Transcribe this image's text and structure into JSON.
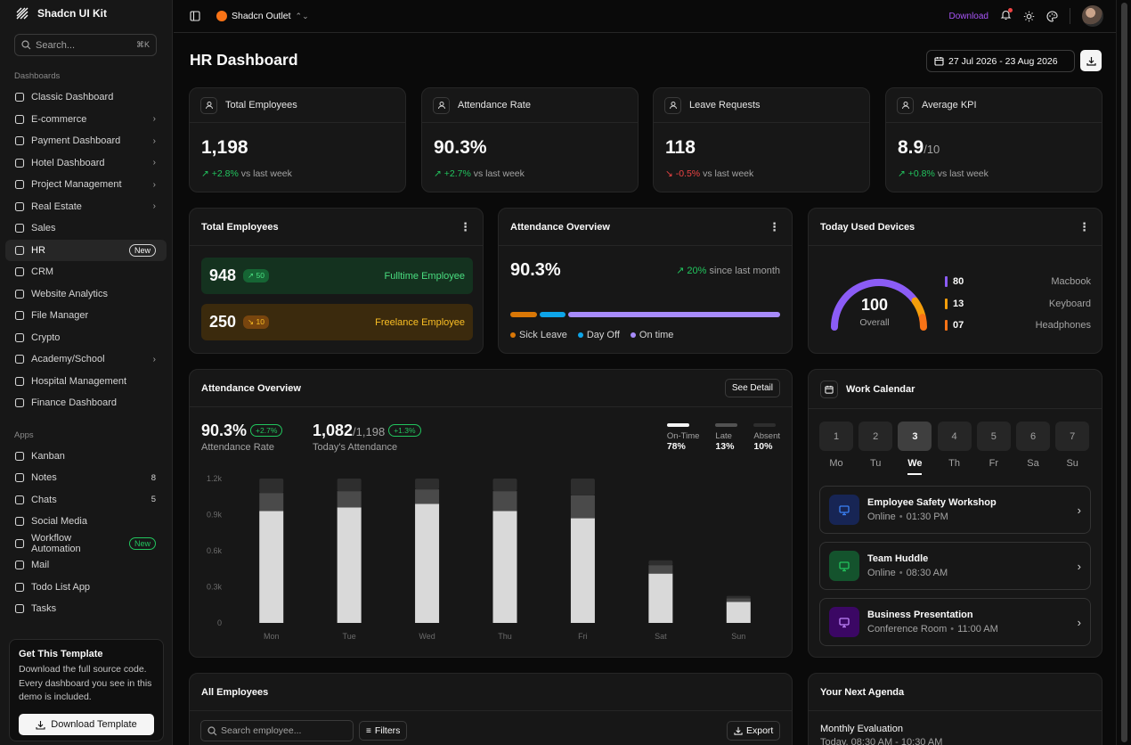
{
  "app": {
    "brand": "Shadcn UI Kit",
    "workspace": "Shadcn Outlet"
  },
  "sidebar": {
    "search_placeholder": "Search...",
    "search_shortcut": "⌘K",
    "dashboards_label": "Dashboards",
    "dashboards": [
      {
        "label": "Classic Dashboard",
        "icon": "clock-icon"
      },
      {
        "label": "E-commerce",
        "icon": "shopping-bag-icon",
        "chevron": true
      },
      {
        "label": "Payment Dashboard",
        "icon": "credit-card-icon",
        "chevron": true
      },
      {
        "label": "Hotel Dashboard",
        "icon": "building-icon",
        "chevron": true
      },
      {
        "label": "Project Management",
        "icon": "folder-icon",
        "chevron": true
      },
      {
        "label": "Real Estate",
        "icon": "building-icon",
        "chevron": true
      },
      {
        "label": "Sales",
        "icon": "dollar-icon"
      },
      {
        "label": "HR",
        "icon": "users-icon",
        "badge": "New",
        "active": true
      },
      {
        "label": "CRM",
        "icon": "chart-icon"
      },
      {
        "label": "Website Analytics",
        "icon": "gauge-icon"
      },
      {
        "label": "File Manager",
        "icon": "folder-icon"
      },
      {
        "label": "Crypto",
        "icon": "wallet-icon"
      },
      {
        "label": "Academy/School",
        "icon": "graduation-cap-icon",
        "chevron": true
      },
      {
        "label": "Hospital Management",
        "icon": "activity-icon"
      },
      {
        "label": "Finance Dashboard",
        "icon": "wallet-icon"
      }
    ],
    "apps_label": "Apps",
    "apps": [
      {
        "label": "Kanban",
        "icon": "kanban-icon"
      },
      {
        "label": "Notes",
        "icon": "note-icon",
        "count": "8"
      },
      {
        "label": "Chats",
        "icon": "chat-icon",
        "count": "5"
      },
      {
        "label": "Social Media",
        "icon": "message-square-icon"
      },
      {
        "label": "Workflow Automation",
        "icon": "workflow-icon",
        "badge": "New"
      },
      {
        "label": "Mail",
        "icon": "mail-icon"
      },
      {
        "label": "Todo List App",
        "icon": "checkbox-icon"
      },
      {
        "label": "Tasks",
        "icon": "clipboard-icon"
      }
    ],
    "promo": {
      "title": "Get This Template",
      "text": "Download the full source code. Every dashboard you see in this demo is included.",
      "button": "Download Template"
    }
  },
  "topbar": {
    "download": "Download"
  },
  "page": {
    "title": "HR Dashboard",
    "date_range": "27 Jul 2026 - 23 Aug 2026"
  },
  "stats": [
    {
      "title": "Total Employees",
      "value": "1,198",
      "sub": "",
      "delta": "+2.8%",
      "trend": "up",
      "delta_suffix": " vs last week"
    },
    {
      "title": "Attendance Rate",
      "value": "90.3%",
      "sub": "",
      "delta": "+2.7%",
      "trend": "up",
      "delta_suffix": " vs last week"
    },
    {
      "title": "Leave Requests",
      "value": "118",
      "sub": "",
      "delta": "-0.5%",
      "trend": "down",
      "delta_suffix": " vs last week"
    },
    {
      "title": "Average KPI",
      "value": "8.9",
      "sub": "/10",
      "delta": "+0.8%",
      "trend": "up",
      "delta_suffix": " vs last week"
    }
  ],
  "total_employees_card": {
    "title": "Total Employees",
    "fulltime": {
      "value": "948",
      "change": "↗ 50",
      "label": "Fulltime Employee"
    },
    "freelance": {
      "value": "250",
      "change": "↘ 10",
      "label": "Freelance Employee"
    }
  },
  "attendance_small": {
    "title": "Attendance Overview",
    "value": "90.3%",
    "change": "↗ 20%",
    "change_suffix": " since last month",
    "legend": [
      {
        "label": "Sick Leave",
        "color": "#d97706"
      },
      {
        "label": "Day Off",
        "color": "#0ea5e9"
      },
      {
        "label": "On time",
        "color": "#a78bfa"
      }
    ],
    "segments": [
      0.1,
      0.1,
      0.8
    ]
  },
  "devices": {
    "title": "Today Used Devices",
    "total": "100",
    "total_label": "Overall",
    "items": [
      {
        "value": "80",
        "label": "Macbook",
        "color": "#8b5cf6"
      },
      {
        "value": "13",
        "label": "Keyboard",
        "color": "#f59e0b"
      },
      {
        "value": "07",
        "label": "Headphones",
        "color": "#f97316"
      }
    ]
  },
  "attendance_chart": {
    "title": "Attendance Overview",
    "see_detail": "See Detail",
    "rate_value": "90.3%",
    "rate_pill": "+2.7%",
    "rate_label": "Attendance Rate",
    "today_value": "1,082",
    "today_total": "/1,198",
    "today_pill": "+1.3%",
    "today_label": "Today's Attendance",
    "breakdown": [
      {
        "label": "On-Time",
        "value": "78%",
        "color": "#f5f5f5"
      },
      {
        "label": "Late",
        "value": "13%",
        "color": "#525252"
      },
      {
        "label": "Absent",
        "value": "10%",
        "color": "#2e2e2e"
      }
    ]
  },
  "chart_data": {
    "type": "bar",
    "stacked": true,
    "categories": [
      "Mon",
      "Tue",
      "Wed",
      "Thu",
      "Fri",
      "Sat",
      "Sun"
    ],
    "ylim": [
      0,
      1200
    ],
    "yticks": [
      "0",
      "0.3k",
      "0.6k",
      "0.9k",
      "1.2k"
    ],
    "series": [
      {
        "name": "On-Time",
        "color": "#d9d9d9",
        "values": [
          930,
          960,
          990,
          930,
          870,
          410,
          175
        ]
      },
      {
        "name": "Late",
        "color": "#4a4a4a",
        "values": [
          150,
          135,
          120,
          165,
          190,
          70,
          30
        ]
      },
      {
        "name": "Absent",
        "color": "#2e2e2e",
        "values": [
          120,
          105,
          90,
          105,
          140,
          40,
          20
        ]
      }
    ]
  },
  "calendar": {
    "title": "Work Calendar",
    "days": [
      {
        "num": "1",
        "label": "Mo"
      },
      {
        "num": "2",
        "label": "Tu"
      },
      {
        "num": "3",
        "label": "We",
        "selected": true
      },
      {
        "num": "4",
        "label": "Th"
      },
      {
        "num": "5",
        "label": "Fr"
      },
      {
        "num": "6",
        "label": "Sa"
      },
      {
        "num": "7",
        "label": "Su"
      }
    ],
    "events": [
      {
        "title": "Employee Safety Workshop",
        "place": "Online",
        "time": "01:30 PM",
        "icon": "video-icon",
        "color": "#3b82f6",
        "bg": "#172554"
      },
      {
        "title": "Team Huddle",
        "place": "Online",
        "time": "08:30 AM",
        "icon": "monitor-icon",
        "color": "#22c55e",
        "bg": "#14532d"
      },
      {
        "title": "Business Presentation",
        "place": "Conference Room",
        "time": "11:00 AM",
        "icon": "presentation-icon",
        "color": "#c084fc",
        "bg": "#3b0764"
      }
    ]
  },
  "employees": {
    "title": "All Employees",
    "search_placeholder": "Search employee...",
    "filters": "Filters",
    "export": "Export"
  },
  "agenda": {
    "title": "Your Next Agenda",
    "item_title": "Monthly Evaluation",
    "item_time": "Today, 08:30 AM - 10:30 AM"
  }
}
